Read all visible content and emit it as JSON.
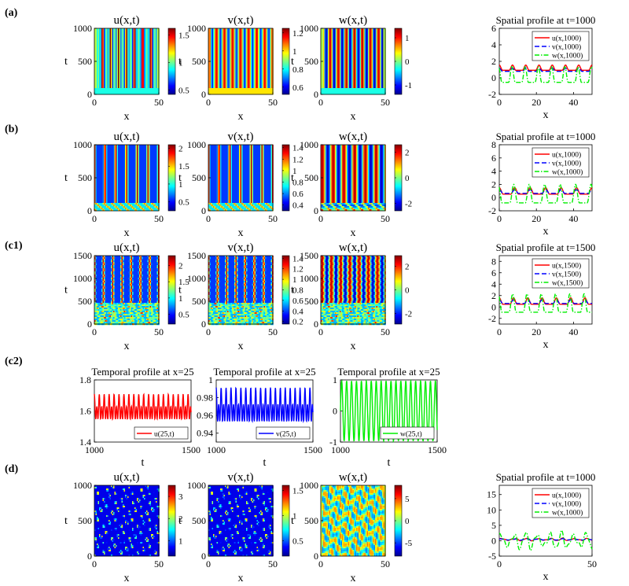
{
  "figure": {
    "panel_labels": [
      "(a)",
      "(b)",
      "(c1)",
      "(c2)",
      "(d)"
    ]
  },
  "colors": {
    "u": "#ff0000",
    "v": "#0000ff",
    "w": "#00ee00",
    "jet": [
      "#00008f",
      "#0000ff",
      "#00ffff",
      "#ffff00",
      "#ff0000",
      "#800000"
    ]
  },
  "chart_data": [
    {
      "id": "a-u",
      "panel": "a",
      "type": "heatmap",
      "title": "u(x,t)",
      "xlabel": "x",
      "ylabel": "t",
      "xticks": [
        "0",
        "50"
      ],
      "xlim": [
        0,
        50
      ],
      "yticks": [
        "0",
        "500",
        "1000"
      ],
      "ylim": [
        0,
        1000
      ],
      "colorbar_ticks": [
        "0.5",
        "1",
        "1.5"
      ],
      "clim": [
        0.42,
        1.62
      ],
      "pattern": "stripes",
      "variable": "u"
    },
    {
      "id": "a-v",
      "panel": "a",
      "type": "heatmap",
      "title": "v(x,t)",
      "xlabel": "x",
      "ylabel": "t",
      "xticks": [
        "0",
        "50"
      ],
      "xlim": [
        0,
        50
      ],
      "yticks": [
        "0",
        "500",
        "1000"
      ],
      "ylim": [
        0,
        1000
      ],
      "colorbar_ticks": [
        "0.6",
        "0.8",
        "1",
        "1.2"
      ],
      "clim": [
        0.52,
        1.25
      ],
      "pattern": "stripes",
      "variable": "v"
    },
    {
      "id": "a-w",
      "panel": "a",
      "type": "heatmap",
      "title": "w(x,t)",
      "xlabel": "x",
      "ylabel": "t",
      "xticks": [
        "0",
        "50"
      ],
      "xlim": [
        0,
        50
      ],
      "yticks": [
        "0",
        "500",
        "1000"
      ],
      "ylim": [
        0,
        1000
      ],
      "colorbar_ticks": [
        "-1",
        "0",
        "1"
      ],
      "clim": [
        -1.4,
        1.4
      ],
      "pattern": "stripes",
      "variable": "w"
    },
    {
      "id": "a-profile",
      "panel": "a",
      "type": "line",
      "title": "Spatial profile at t=1000",
      "xlabel": "x",
      "ylabel": "",
      "xticks": [
        "0",
        "20",
        "40"
      ],
      "xlim": [
        0,
        50
      ],
      "yticks": [
        "-2",
        "0",
        "2",
        "4",
        "6"
      ],
      "ylim": [
        -2,
        6
      ],
      "legend": [
        "u(x,1000)",
        "v(x,1000)",
        "w(x,1000)"
      ],
      "series": [
        {
          "name": "u(x,1000)",
          "mean": 1.1,
          "amp": 0.45,
          "period": 7.14,
          "phase": 0
        },
        {
          "name": "v(x,1000)",
          "mean": 0.9,
          "amp": 0.28,
          "period": 7.14,
          "phase": 0
        },
        {
          "name": "w(x,1000)",
          "mean": 0.0,
          "amp": 1.35,
          "period": 7.14,
          "phase": 0.3
        }
      ]
    },
    {
      "id": "b-u",
      "panel": "b",
      "type": "heatmap",
      "title": "u(x,t)",
      "xlabel": "x",
      "ylabel": "t",
      "xticks": [
        "0",
        "50"
      ],
      "xlim": [
        0,
        50
      ],
      "yticks": [
        "0",
        "500",
        "1000"
      ],
      "ylim": [
        0,
        1000
      ],
      "colorbar_ticks": [
        "0.5",
        "1",
        "1.5",
        "2"
      ],
      "clim": [
        0.25,
        2.1
      ],
      "pattern": "stripes-transient",
      "variable": "u"
    },
    {
      "id": "b-v",
      "panel": "b",
      "type": "heatmap",
      "title": "v(x,t)",
      "xlabel": "x",
      "ylabel": "t",
      "xticks": [
        "0",
        "50"
      ],
      "xlim": [
        0,
        50
      ],
      "yticks": [
        "0",
        "500",
        "1000"
      ],
      "ylim": [
        0,
        1000
      ],
      "colorbar_ticks": [
        "0.4",
        "0.6",
        "0.8",
        "1",
        "1.2",
        "1.4"
      ],
      "clim": [
        0.3,
        1.45
      ],
      "pattern": "stripes-transient",
      "variable": "v"
    },
    {
      "id": "b-w",
      "panel": "b",
      "type": "heatmap",
      "title": "w(x,t)",
      "xlabel": "x",
      "ylabel": "t",
      "xticks": [
        "0",
        "50"
      ],
      "xlim": [
        0,
        50
      ],
      "yticks": [
        "0",
        "500",
        "1000"
      ],
      "ylim": [
        0,
        1000
      ],
      "colorbar_ticks": [
        "-2",
        "0",
        "2"
      ],
      "clim": [
        -2.6,
        2.6
      ],
      "pattern": "stripes-transient",
      "variable": "w"
    },
    {
      "id": "b-profile",
      "panel": "b",
      "type": "line",
      "title": "Spatial profile at t=1000",
      "xlabel": "x",
      "ylabel": "",
      "xticks": [
        "0",
        "20",
        "40"
      ],
      "xlim": [
        0,
        50
      ],
      "yticks": [
        "-2",
        "0",
        "2",
        "4",
        "6",
        "8"
      ],
      "ylim": [
        -2,
        8
      ],
      "legend": [
        "u(x,1000)",
        "v(x,1000)",
        "w(x,1000)"
      ],
      "series": [
        {
          "name": "u(x,1000)",
          "mean": 0.8,
          "amp": 0.7,
          "period": 8.33,
          "phase": 0
        },
        {
          "name": "v(x,1000)",
          "mean": 0.8,
          "amp": 0.4,
          "period": 8.33,
          "phase": 0
        },
        {
          "name": "w(x,1000)",
          "mean": 0.0,
          "amp": 2.0,
          "period": 8.33,
          "phase": 0.4
        }
      ]
    },
    {
      "id": "c1-u",
      "panel": "c1",
      "type": "heatmap",
      "title": "u(x,t)",
      "xlabel": "x",
      "ylabel": "t",
      "xticks": [
        "0",
        "50"
      ],
      "xlim": [
        0,
        50
      ],
      "yticks": [
        "0",
        "500",
        "1000",
        "1500"
      ],
      "ylim": [
        0,
        1500
      ],
      "colorbar_ticks": [
        "0.5",
        "1",
        "1.5",
        "2"
      ],
      "clim": [
        0.2,
        2.3
      ],
      "pattern": "wavy",
      "variable": "u"
    },
    {
      "id": "c1-v",
      "panel": "c1",
      "type": "heatmap",
      "title": "v(x,t)",
      "xlabel": "x",
      "ylabel": "t",
      "xticks": [
        "0",
        "50"
      ],
      "xlim": [
        0,
        50
      ],
      "yticks": [
        "0",
        "500",
        "1000",
        "1500"
      ],
      "ylim": [
        0,
        1500
      ],
      "colorbar_ticks": [
        "0.2",
        "0.4",
        "0.6",
        "0.8",
        "1",
        "1.2",
        "1.4"
      ],
      "clim": [
        0.15,
        1.45
      ],
      "pattern": "wavy",
      "variable": "v"
    },
    {
      "id": "c1-w",
      "panel": "c1",
      "type": "heatmap",
      "title": "w(x,t)",
      "xlabel": "x",
      "ylabel": "t",
      "xticks": [
        "0",
        "50"
      ],
      "xlim": [
        0,
        50
      ],
      "yticks": [
        "0",
        "500",
        "1000",
        "1500"
      ],
      "ylim": [
        0,
        1500
      ],
      "colorbar_ticks": [
        "-2",
        "0",
        "2"
      ],
      "clim": [
        -2.9,
        2.9
      ],
      "pattern": "wavy",
      "variable": "w"
    },
    {
      "id": "c1-profile",
      "panel": "c1",
      "type": "line",
      "title": "Spatial profile at t=1500",
      "xlabel": "x",
      "ylabel": "",
      "xticks": [
        "0",
        "20",
        "40"
      ],
      "xlim": [
        0,
        50
      ],
      "yticks": [
        "-2",
        "0",
        "2",
        "4",
        "6",
        "8"
      ],
      "ylim": [
        -3,
        9
      ],
      "legend": [
        "u(x,1500)",
        "v(x,1500)",
        "w(x,1500)"
      ],
      "series": [
        {
          "name": "u(x,1500)",
          "mean": 0.8,
          "amp": 0.8,
          "period": 7.7,
          "phase": 0
        },
        {
          "name": "v(x,1500)",
          "mean": 0.8,
          "amp": 0.45,
          "period": 7.7,
          "phase": 0
        },
        {
          "name": "w(x,1500)",
          "mean": 0.0,
          "amp": 2.3,
          "period": 7.7,
          "phase": 0.4
        }
      ]
    },
    {
      "id": "c2-u",
      "panel": "c2",
      "type": "line",
      "title": "Temporal profile at x=25",
      "xlabel": "t",
      "ylabel": "",
      "xticks": [
        "1000",
        "1500"
      ],
      "xlim": [
        1000,
        1500
      ],
      "yticks": [
        "1.4",
        "1.6",
        "1.8"
      ],
      "ylim": [
        1.4,
        1.8
      ],
      "legend": [
        "u(25,t)"
      ],
      "series": [
        {
          "name": "u(25,t)",
          "mean": 1.61,
          "amp": 0.11,
          "period": 25.5,
          "phase": 0,
          "kind": "double"
        }
      ]
    },
    {
      "id": "c2-v",
      "panel": "c2",
      "type": "line",
      "title": "Temporal profile at x=25",
      "xlabel": "t",
      "ylabel": "",
      "xticks": [
        "1000",
        "1500"
      ],
      "xlim": [
        1000,
        1500
      ],
      "yticks": [
        "0.94",
        "0.96",
        "0.98",
        "1"
      ],
      "ylim": [
        0.93,
        1.0
      ],
      "legend": [
        "v(25,t)"
      ],
      "series": [
        {
          "name": "v(25,t)",
          "mean": 0.968,
          "amp": 0.026,
          "period": 25.5,
          "phase": 0,
          "kind": "double"
        }
      ]
    },
    {
      "id": "c2-w",
      "panel": "c2",
      "type": "line",
      "title": "Temporal profile at x=25",
      "xlabel": "t",
      "ylabel": "",
      "xticks": [
        "1000",
        "1500"
      ],
      "xlim": [
        1000,
        1500
      ],
      "yticks": [
        "-1",
        "0",
        "1"
      ],
      "ylim": [
        -1,
        1
      ],
      "legend": [
        "w(25,t)"
      ],
      "series": [
        {
          "name": "w(25,t)",
          "mean": 0.0,
          "amp": 0.97,
          "period": 25.5,
          "phase": 0,
          "kind": "sine"
        }
      ]
    },
    {
      "id": "d-u",
      "panel": "d",
      "type": "heatmap",
      "title": "u(x,t)",
      "xlabel": "x",
      "ylabel": "t",
      "xticks": [
        "0",
        "50"
      ],
      "xlim": [
        0,
        50
      ],
      "yticks": [
        "0",
        "500",
        "1000"
      ],
      "ylim": [
        0,
        1000
      ],
      "colorbar_ticks": [
        "1",
        "2",
        "3"
      ],
      "clim": [
        0.3,
        3.5
      ],
      "pattern": "chaos",
      "variable": "u"
    },
    {
      "id": "d-v",
      "panel": "d",
      "type": "heatmap",
      "title": "v(x,t)",
      "xlabel": "x",
      "ylabel": "t",
      "xticks": [
        "0",
        "50"
      ],
      "xlim": [
        0,
        50
      ],
      "yticks": [
        "0",
        "500",
        "1000"
      ],
      "ylim": [
        0,
        1000
      ],
      "colorbar_ticks": [
        "0.5",
        "1",
        "1.5"
      ],
      "clim": [
        0.2,
        1.6
      ],
      "pattern": "chaos",
      "variable": "v"
    },
    {
      "id": "d-w",
      "panel": "d",
      "type": "heatmap",
      "title": "w(x,t)",
      "xlabel": "x",
      "ylabel": "t",
      "xticks": [
        "0",
        "50"
      ],
      "xlim": [
        0,
        50
      ],
      "yticks": [
        "0",
        "500",
        "1000"
      ],
      "ylim": [
        0,
        1000
      ],
      "colorbar_ticks": [
        "-5",
        "0",
        "5"
      ],
      "clim": [
        -8,
        8
      ],
      "pattern": "chaos-w",
      "variable": "w"
    },
    {
      "id": "d-profile",
      "panel": "d",
      "type": "line",
      "title": "Spatial profile at t=1000",
      "xlabel": "x",
      "ylabel": "",
      "xticks": [
        "0",
        "50"
      ],
      "xlim": [
        0,
        50
      ],
      "yticks": [
        "-5",
        "0",
        "5",
        "10",
        "15"
      ],
      "ylim": [
        -5,
        18
      ],
      "legend": [
        "u(x,1000)",
        "v(x,1000)",
        "w(x,1000)"
      ],
      "series": [
        {
          "name": "u(x,1000)",
          "mean": 0.4,
          "amp": 0.5,
          "period": 6.5,
          "phase": 0,
          "kind": "irregular"
        },
        {
          "name": "v(x,1000)",
          "mean": 0.4,
          "amp": 0.3,
          "period": 6.5,
          "phase": 0,
          "kind": "irregular"
        },
        {
          "name": "w(x,1000)",
          "mean": 0.0,
          "amp": 3.5,
          "period": 6.5,
          "phase": 0.5,
          "kind": "irregular"
        }
      ]
    }
  ]
}
